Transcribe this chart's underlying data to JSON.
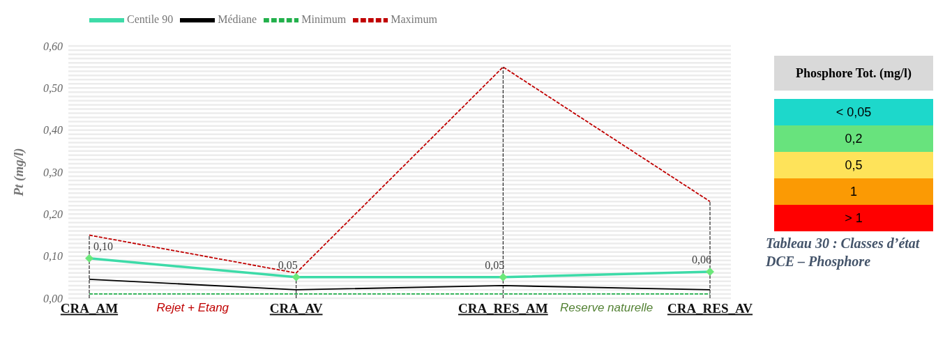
{
  "chart_data": [
    {
      "type": "line",
      "ylabel": "Pt (mg/l)",
      "categories": [
        "CRA_AM",
        "CRA_AV",
        "CRA_RES_AM",
        "CRA_RES_AV"
      ],
      "series": [
        {
          "name": "Centile 90",
          "color": "#3ddba8",
          "values": [
            0.095,
            0.05,
            0.05,
            0.063
          ],
          "marker": "diamond",
          "value_labels": [
            "0,10",
            "0,05",
            "0,05",
            "0,06"
          ]
        },
        {
          "name": "Médiane",
          "color": "#000000",
          "values": [
            0.045,
            0.02,
            0.03,
            0.02
          ]
        },
        {
          "name": "Minimum",
          "color": "#22b04b",
          "values": [
            0.01,
            0.01,
            0.01,
            0.01
          ],
          "line_style": "dashed"
        },
        {
          "name": "Maximum",
          "color": "#c00000",
          "values": [
            0.15,
            0.06,
            0.55,
            0.23
          ],
          "line_style": "dashed"
        }
      ],
      "ref_lines": [
        {
          "axis": "x",
          "value": "CRA_AM",
          "line_style": "dashed",
          "color": "#000000"
        },
        {
          "axis": "x",
          "value": "CRA_AV",
          "line_style": "dashed",
          "color": "#000000"
        },
        {
          "axis": "x",
          "value": "CRA_RES_AM",
          "line_style": "dashed",
          "color": "#000000"
        },
        {
          "axis": "x",
          "value": "CRA_RES_AV",
          "line_style": "dashed",
          "color": "#000000"
        }
      ],
      "ylim": [
        0,
        0.6
      ],
      "yticks": [
        {
          "value": 0,
          "label": "0,00"
        },
        {
          "value": 0.01,
          "label": null
        },
        {
          "value": 0.02,
          "label": null
        },
        {
          "value": 0.03,
          "label": null
        },
        {
          "value": 0.04,
          "label": null
        },
        {
          "value": 0.05,
          "label": null
        },
        {
          "value": 0.06,
          "label": null
        },
        {
          "value": 0.07,
          "label": null
        },
        {
          "value": 0.08,
          "label": null
        },
        {
          "value": 0.09,
          "label": null
        },
        {
          "value": 0.1,
          "label": "0,10"
        },
        {
          "value": 0.11,
          "label": null
        },
        {
          "value": 0.12,
          "label": null
        },
        {
          "value": 0.13,
          "label": null
        },
        {
          "value": 0.14,
          "label": null
        },
        {
          "value": 0.15,
          "label": null
        },
        {
          "value": 0.16,
          "label": null
        },
        {
          "value": 0.17,
          "label": null
        },
        {
          "value": 0.18,
          "label": null
        },
        {
          "value": 0.19,
          "label": null
        },
        {
          "value": 0.2,
          "label": "0,20"
        },
        {
          "value": 0.21,
          "label": null
        },
        {
          "value": 0.22,
          "label": null
        },
        {
          "value": 0.23,
          "label": null
        },
        {
          "value": 0.24,
          "label": null
        },
        {
          "value": 0.25,
          "label": null
        },
        {
          "value": 0.26,
          "label": null
        },
        {
          "value": 0.27,
          "label": null
        },
        {
          "value": 0.28,
          "label": null
        },
        {
          "value": 0.29,
          "label": null
        },
        {
          "value": 0.3,
          "label": "0,30"
        },
        {
          "value": 0.31,
          "label": null
        },
        {
          "value": 0.32,
          "label": null
        },
        {
          "value": 0.33,
          "label": null
        },
        {
          "value": 0.34,
          "label": null
        },
        {
          "value": 0.35,
          "label": null
        },
        {
          "value": 0.36,
          "label": null
        },
        {
          "value": 0.37,
          "label": null
        },
        {
          "value": 0.38,
          "label": null
        },
        {
          "value": 0.39,
          "label": null
        },
        {
          "value": 0.4,
          "label": "0,40"
        },
        {
          "value": 0.41,
          "label": null
        },
        {
          "value": 0.42,
          "label": null
        },
        {
          "value": 0.43,
          "label": null
        },
        {
          "value": 0.44,
          "label": null
        },
        {
          "value": 0.45,
          "label": null
        },
        {
          "value": 0.46,
          "label": null
        },
        {
          "value": 0.47,
          "label": null
        },
        {
          "value": 0.48,
          "label": null
        },
        {
          "value": 0.49,
          "label": null
        },
        {
          "value": 0.5,
          "label": "0,50"
        },
        {
          "value": 0.51,
          "label": null
        },
        {
          "value": 0.52,
          "label": null
        },
        {
          "value": 0.53,
          "label": null
        },
        {
          "value": 0.54,
          "label": null
        },
        {
          "value": 0.55,
          "label": null
        },
        {
          "value": 0.56,
          "label": null
        },
        {
          "value": 0.57,
          "label": null
        },
        {
          "value": 0.58,
          "label": null
        },
        {
          "value": 0.59,
          "label": null
        },
        {
          "value": 0.6,
          "label": "0,60"
        }
      ],
      "grid": "y",
      "legend": "top left",
      "annotations": [
        "Rejet + Etang",
        "Reserve naturelle"
      ]
    },
    {
      "type": "other",
      "title": "Phosphore Tot. (mg/l)",
      "categories": [
        "< 0,05",
        "0,2",
        "0,5",
        "1",
        "> 1"
      ],
      "colors": [
        "#1dd8cb",
        "#68e37d",
        "#fee35a",
        "#fb9a04",
        "#ff0000"
      ],
      "annotations": [
        "Tableau 30 : Classes d’état DCE – Phosphore"
      ]
    }
  ]
}
